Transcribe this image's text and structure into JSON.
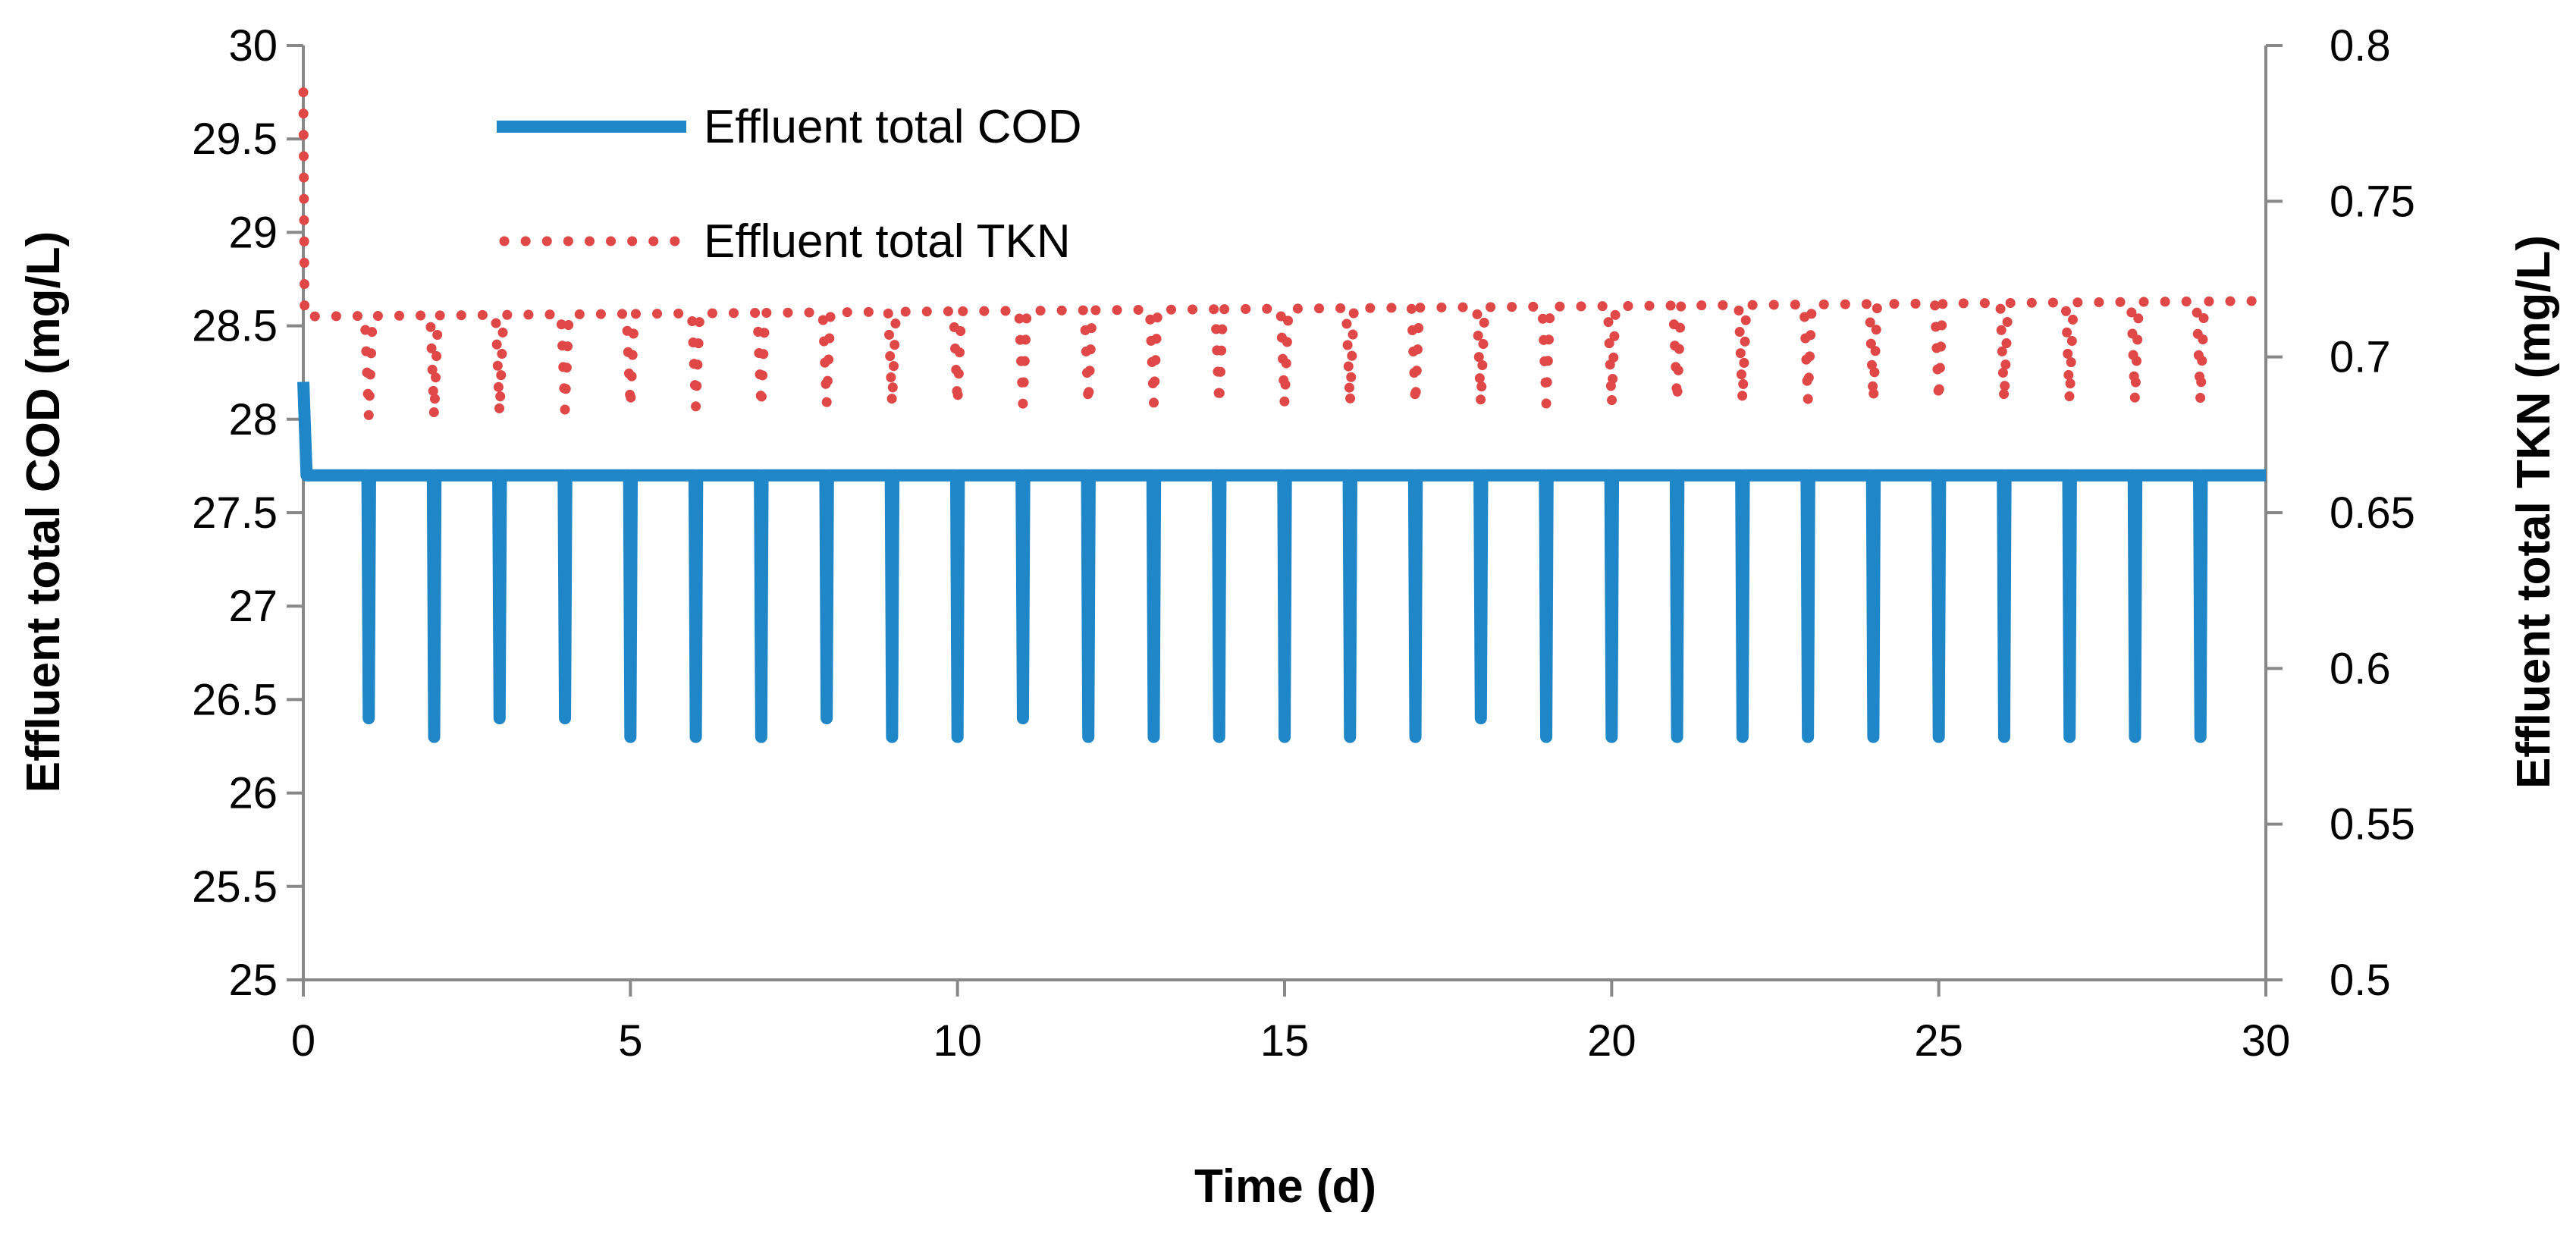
{
  "chart_data": {
    "type": "line",
    "title": "",
    "xlabel": "Time (d)",
    "ylabel_left": "Effluent total COD (mg/L)",
    "ylabel_right": "Effluent total TKN (mg/L)",
    "xlim": [
      0,
      30
    ],
    "ylim_left": [
      25,
      30
    ],
    "ylim_right": [
      0.5,
      0.8
    ],
    "x_ticks": [
      "0",
      "5",
      "10",
      "15",
      "20",
      "25",
      "30"
    ],
    "y_left_ticks": [
      "25",
      "25.5",
      "26",
      "26.5",
      "27",
      "27.5",
      "28",
      "28.5",
      "29",
      "29.5",
      "30"
    ],
    "y_right_ticks": [
      "0.5",
      "0.55",
      "0.6",
      "0.65",
      "0.7",
      "0.75",
      "0.8"
    ],
    "grid": false,
    "legend_position": "top-left",
    "colors": {
      "cod": "#1F86C8",
      "tkn": "#E04848",
      "axis": "#888888"
    },
    "series": [
      {
        "name": "Effluent total COD",
        "axis": "left",
        "style": "solid",
        "start": {
          "x": 0,
          "y": 28.2
        },
        "baseline": 27.7,
        "dip_days": [
          1,
          2,
          3,
          4,
          5,
          6,
          7,
          8,
          9,
          10,
          11,
          12,
          13,
          14,
          15,
          16,
          17,
          18,
          19,
          20,
          21,
          22,
          23,
          24,
          25,
          26,
          27,
          28,
          29
        ],
        "dip_minima": [
          26.4,
          26.3,
          26.4,
          26.4,
          26.3,
          26.3,
          26.3,
          26.4,
          26.3,
          26.3,
          26.4,
          26.3,
          26.3,
          26.3,
          26.3,
          26.3,
          26.3,
          26.4,
          26.3,
          26.3,
          26.3,
          26.3,
          26.3,
          26.3,
          26.3,
          26.3,
          26.3,
          26.3,
          26.3
        ]
      },
      {
        "name": "Effluent total TKN",
        "axis": "right",
        "style": "dotted",
        "start": {
          "x": 0,
          "y": 0.785
        },
        "plateau_start": 0.713,
        "plateau_end": 0.718,
        "dip_days": [
          1,
          2,
          3,
          4,
          5,
          6,
          7,
          8,
          9,
          10,
          11,
          12,
          13,
          14,
          15,
          16,
          17,
          18,
          19,
          20,
          21,
          22,
          23,
          24,
          25,
          26,
          27,
          28,
          29
        ],
        "dip_minima": [
          0.681,
          0.681,
          0.682,
          0.683,
          0.684,
          0.684,
          0.684,
          0.685,
          0.685,
          0.685,
          0.685,
          0.685,
          0.685,
          0.685,
          0.685,
          0.685,
          0.685,
          0.685,
          0.685,
          0.685,
          0.686,
          0.686,
          0.686,
          0.686,
          0.686,
          0.686,
          0.686,
          0.686,
          0.686
        ]
      }
    ]
  }
}
